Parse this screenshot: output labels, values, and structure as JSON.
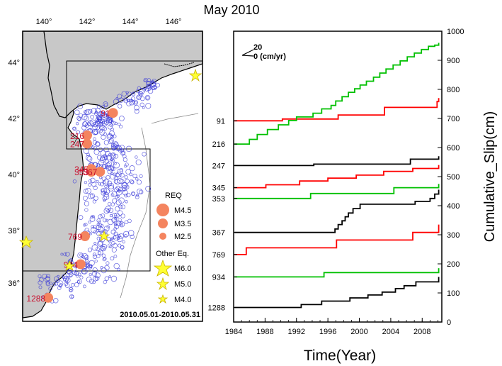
{
  "title": "May 2010",
  "map": {
    "lon_ticks": [
      "140°",
      "142°",
      "144°",
      "146°"
    ],
    "lat_ticks": [
      "44°",
      "42°",
      "40°",
      "38°",
      "36°"
    ],
    "date_range": "2010.05.01-2010.05.31",
    "legend": {
      "req_title": "REQ",
      "req_items": [
        "M4.5",
        "M3.5",
        "M2.5"
      ],
      "other_title": "Other Eq.",
      "other_items": [
        "M6.0",
        "M5.0",
        "M4.0"
      ]
    },
    "req_events": [
      {
        "label": "91",
        "lon": 143.2,
        "lat": 42.3
      },
      {
        "label": "216",
        "lon": 142.0,
        "lat": 41.5
      },
      {
        "label": "247",
        "lon": 142.0,
        "lat": 41.2
      },
      {
        "label": "345",
        "lon": 142.2,
        "lat": 40.3
      },
      {
        "label": "353",
        "lon": 142.2,
        "lat": 40.2
      },
      {
        "label": "367",
        "lon": 142.6,
        "lat": 40.2
      },
      {
        "label": "769",
        "lon": 141.9,
        "lat": 37.9
      },
      {
        "label": "934",
        "lon": 141.7,
        "lat": 36.9
      },
      {
        "label": "1288",
        "lon": 140.2,
        "lat": 35.7
      }
    ]
  },
  "chart_data": {
    "type": "line",
    "title": "May 2010",
    "xlabel": "Time(Year)",
    "ylabel": "Cumulative_Slip(cm)",
    "xlim": [
      1984,
      2010.5
    ],
    "ylim": [
      0,
      1000
    ],
    "x_ticks": [
      "1984",
      "1988",
      "1992",
      "1996",
      "2000",
      "2004",
      "2008"
    ],
    "y_ticks": [
      "0",
      "100",
      "200",
      "300",
      "400",
      "500",
      "600",
      "700",
      "800",
      "900",
      "1000"
    ],
    "scale_label": "20",
    "scale_unit": "0 (cm/yr)",
    "series": [
      {
        "name": "91",
        "color": "#ff0000",
        "points": [
          [
            1984.1,
            692
          ],
          [
            1990.2,
            692
          ],
          [
            1990.2,
            698
          ],
          [
            1997.3,
            698
          ],
          [
            1997.3,
            712
          ],
          [
            2003.2,
            712
          ],
          [
            2003.2,
            738
          ],
          [
            2009.9,
            738
          ],
          [
            2009.9,
            758
          ],
          [
            2010.1,
            758
          ],
          [
            2010.1,
            770
          ]
        ]
      },
      {
        "name": "216",
        "color": "#00c000",
        "points": [
          [
            1984.1,
            612
          ],
          [
            1986.0,
            612
          ],
          [
            1986.0,
            628
          ],
          [
            1987.0,
            628
          ],
          [
            1987.0,
            645
          ],
          [
            1988.3,
            645
          ],
          [
            1988.3,
            662
          ],
          [
            1989.7,
            662
          ],
          [
            1989.7,
            678
          ],
          [
            1991.0,
            678
          ],
          [
            1991.0,
            693
          ],
          [
            1992.0,
            693
          ],
          [
            1992.0,
            705
          ],
          [
            1994.1,
            705
          ],
          [
            1994.1,
            718
          ],
          [
            1995.2,
            718
          ],
          [
            1995.2,
            733
          ],
          [
            1996.4,
            733
          ],
          [
            1996.4,
            745
          ],
          [
            1997.0,
            745
          ],
          [
            1997.0,
            760
          ],
          [
            1997.8,
            760
          ],
          [
            1997.8,
            775
          ],
          [
            1998.6,
            775
          ],
          [
            1998.6,
            790
          ],
          [
            1999.4,
            790
          ],
          [
            1999.4,
            802
          ],
          [
            2000.1,
            802
          ],
          [
            2000.1,
            815
          ],
          [
            2000.9,
            815
          ],
          [
            2000.9,
            828
          ],
          [
            2001.8,
            828
          ],
          [
            2001.8,
            842
          ],
          [
            2002.6,
            842
          ],
          [
            2002.6,
            856
          ],
          [
            2003.4,
            856
          ],
          [
            2003.4,
            870
          ],
          [
            2004.3,
            870
          ],
          [
            2004.3,
            884
          ],
          [
            2005.2,
            884
          ],
          [
            2005.2,
            898
          ],
          [
            2006.1,
            898
          ],
          [
            2006.1,
            912
          ],
          [
            2007.0,
            912
          ],
          [
            2007.0,
            925
          ],
          [
            2007.9,
            925
          ],
          [
            2007.9,
            937
          ],
          [
            2008.8,
            937
          ],
          [
            2008.8,
            948
          ],
          [
            2009.6,
            948
          ],
          [
            2009.6,
            952
          ],
          [
            2010.1,
            952
          ],
          [
            2010.1,
            960
          ]
        ]
      },
      {
        "name": "247",
        "color": "#000000",
        "points": [
          [
            1984.1,
            538
          ],
          [
            1994.2,
            538
          ],
          [
            1994.2,
            543
          ],
          [
            2006.5,
            543
          ],
          [
            2006.5,
            560
          ],
          [
            2010.1,
            560
          ],
          [
            2010.1,
            570
          ]
        ]
      },
      {
        "name": "345",
        "color": "#ff0000",
        "points": [
          [
            1984.1,
            462
          ],
          [
            1988.1,
            462
          ],
          [
            1988.1,
            472
          ],
          [
            1992.4,
            472
          ],
          [
            1992.4,
            485
          ],
          [
            1996.0,
            485
          ],
          [
            1996.0,
            495
          ],
          [
            1999.6,
            495
          ],
          [
            1999.6,
            505
          ],
          [
            2003.1,
            505
          ],
          [
            2003.1,
            518
          ],
          [
            2006.8,
            518
          ],
          [
            2006.8,
            528
          ],
          [
            2010.1,
            528
          ],
          [
            2010.1,
            540
          ]
        ]
      },
      {
        "name": "353",
        "color": "#00c000",
        "points": [
          [
            1984.1,
            425
          ],
          [
            1993.8,
            425
          ],
          [
            1993.8,
            442
          ],
          [
            2004.4,
            442
          ],
          [
            2004.4,
            462
          ],
          [
            2010.1,
            462
          ],
          [
            2010.1,
            475
          ]
        ]
      },
      {
        "name": "367",
        "color": "#000000",
        "points": [
          [
            1984.1,
            308
          ],
          [
            1996.9,
            308
          ],
          [
            1996.9,
            320
          ],
          [
            1997.3,
            320
          ],
          [
            1997.3,
            335
          ],
          [
            1997.8,
            335
          ],
          [
            1997.8,
            348
          ],
          [
            1998.2,
            348
          ],
          [
            1998.2,
            362
          ],
          [
            1998.6,
            362
          ],
          [
            1998.6,
            375
          ],
          [
            1999.2,
            375
          ],
          [
            1999.2,
            390
          ],
          [
            2000.1,
            390
          ],
          [
            2000.1,
            405
          ],
          [
            2007.1,
            405
          ],
          [
            2007.1,
            415
          ],
          [
            2009.0,
            415
          ],
          [
            2009.0,
            425
          ],
          [
            2009.6,
            425
          ],
          [
            2009.6,
            440
          ],
          [
            2010.1,
            440
          ],
          [
            2010.1,
            455
          ]
        ]
      },
      {
        "name": "769",
        "color": "#ff0000",
        "points": [
          [
            1984.1,
            232
          ],
          [
            1985.6,
            232
          ],
          [
            1985.6,
            255
          ],
          [
            1997.1,
            255
          ],
          [
            1997.1,
            282
          ],
          [
            2006.8,
            282
          ],
          [
            2006.8,
            308
          ],
          [
            2010.1,
            308
          ],
          [
            2010.1,
            335
          ]
        ]
      },
      {
        "name": "934",
        "color": "#00c000",
        "points": [
          [
            1984.1,
            155
          ],
          [
            1995.5,
            155
          ],
          [
            1995.5,
            170
          ],
          [
            2010.1,
            170
          ],
          [
            2010.1,
            185
          ]
        ]
      },
      {
        "name": "1288",
        "color": "#000000",
        "points": [
          [
            1984.1,
            50
          ],
          [
            1992.6,
            50
          ],
          [
            1992.6,
            60
          ],
          [
            1995.2,
            60
          ],
          [
            1995.2,
            72
          ],
          [
            1998.8,
            72
          ],
          [
            1998.8,
            83
          ],
          [
            2001.1,
            83
          ],
          [
            2001.1,
            93
          ],
          [
            2002.9,
            93
          ],
          [
            2002.9,
            103
          ],
          [
            2004.6,
            103
          ],
          [
            2004.6,
            115
          ],
          [
            2005.7,
            115
          ],
          [
            2005.7,
            125
          ],
          [
            2007.2,
            125
          ],
          [
            2007.2,
            138
          ],
          [
            2010.1,
            138
          ],
          [
            2010.1,
            155
          ]
        ]
      }
    ]
  }
}
